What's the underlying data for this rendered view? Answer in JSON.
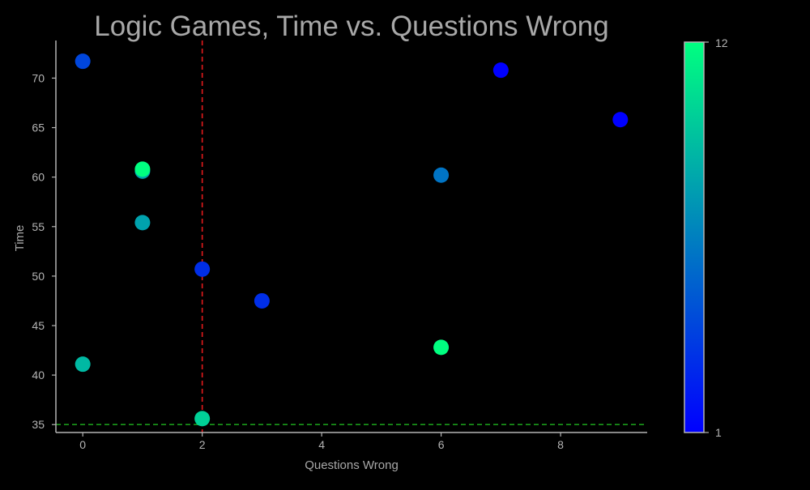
{
  "chart_data": {
    "type": "scatter",
    "title": "Logic Games, Time vs. Questions Wrong",
    "xlabel": "Questions Wrong",
    "ylabel": "Time",
    "xlim": [
      -0.45,
      9.45
    ],
    "ylim": [
      34.2,
      73.8
    ],
    "xticks": [
      0,
      2,
      4,
      6,
      8
    ],
    "yticks": [
      35,
      40,
      45,
      50,
      55,
      60,
      65,
      70
    ],
    "grid": false,
    "colorbar": {
      "min": 1,
      "max": 12,
      "tick_labels": [
        "1",
        "12"
      ],
      "colormap": "winter",
      "color_low": "#0000ff",
      "color_high": "#00ff80"
    },
    "reference_lines": [
      {
        "orientation": "vertical",
        "value": 2,
        "color": "#e41a1c",
        "style": "dashed"
      },
      {
        "orientation": "horizontal",
        "value": 35,
        "color": "#1a9a1a",
        "style": "dashed"
      }
    ],
    "points": [
      {
        "x": 0,
        "y": 71.7,
        "c": 4
      },
      {
        "x": 0,
        "y": 41.1,
        "c": 9
      },
      {
        "x": 1,
        "y": 60.6,
        "c": 8
      },
      {
        "x": 1,
        "y": 60.8,
        "c": 12
      },
      {
        "x": 1,
        "y": 55.4,
        "c": 8
      },
      {
        "x": 2,
        "y": 50.7,
        "c": 3
      },
      {
        "x": 2,
        "y": 35.6,
        "c": 10
      },
      {
        "x": 3,
        "y": 47.5,
        "c": 3
      },
      {
        "x": 6,
        "y": 60.2,
        "c": 6
      },
      {
        "x": 6,
        "y": 42.8,
        "c": 12
      },
      {
        "x": 7,
        "y": 70.8,
        "c": 1
      },
      {
        "x": 9,
        "y": 65.8,
        "c": 1
      }
    ]
  }
}
